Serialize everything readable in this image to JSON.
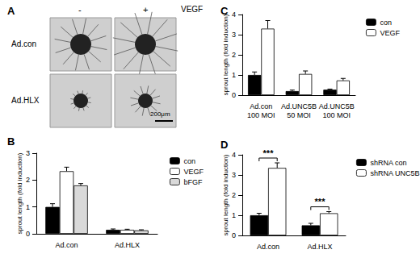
{
  "panel_a": {
    "label": "A",
    "columns": [
      "-",
      "+"
    ],
    "column_title": "VEGF",
    "rows": [
      "Ad.con",
      "Ad.HLX"
    ],
    "scale_bar": "200μm"
  },
  "chart_data": [
    {
      "type": "bar",
      "title": "B",
      "y_label": "sprout length (fold induction)",
      "categories": [
        "Ad.con",
        "Ad.HLX"
      ],
      "series": [
        {
          "name": "con",
          "color": "#000000",
          "values": [
            1.0,
            0.15
          ],
          "errors": [
            0.12,
            0.03
          ]
        },
        {
          "name": "VEGF",
          "color": "#ffffff",
          "values": [
            2.33,
            0.15
          ],
          "errors": [
            0.15,
            0.02
          ]
        },
        {
          "name": "bFGF",
          "color": "#d9d9d9",
          "values": [
            1.8,
            0.13
          ],
          "errors": [
            0.07,
            0.02
          ]
        }
      ],
      "ylim": [
        0,
        3
      ],
      "yticks": [
        0,
        1,
        2,
        3
      ],
      "grid": false,
      "legend": "upper right"
    },
    {
      "type": "bar",
      "title": "C",
      "y_label": "sprout length (fold induction)",
      "categories": [
        "Ad.con\n100 MOI",
        "Ad.UNC5B\n50 MOI",
        "Ad.UNC5B\n100 MOI"
      ],
      "series": [
        {
          "name": "con",
          "color": "#000000",
          "values": [
            1.0,
            0.2,
            0.27
          ],
          "errors": [
            0.15,
            0.05,
            0.03
          ]
        },
        {
          "name": "VEGF",
          "color": "#ffffff",
          "values": [
            3.3,
            1.05,
            0.73
          ],
          "errors": [
            0.4,
            0.15,
            0.1
          ]
        }
      ],
      "ylim": [
        0,
        4
      ],
      "yticks": [
        0,
        1,
        2,
        3,
        4
      ],
      "grid": false,
      "legend": "upper right"
    },
    {
      "type": "bar",
      "title": "D",
      "y_label": "sprout length (fold induction)",
      "categories": [
        "Ad.con",
        "Ad.HLX"
      ],
      "series": [
        {
          "name": "shRNA con",
          "color": "#000000",
          "values": [
            1.0,
            0.5
          ],
          "errors": [
            0.1,
            0.1
          ]
        },
        {
          "name": "shRNA UNC5B",
          "color": "#ffffff",
          "values": [
            3.35,
            1.1
          ],
          "errors": [
            0.25,
            0.08
          ]
        }
      ],
      "annotations": [
        {
          "text": "***",
          "category": "Ad.con"
        },
        {
          "text": "***",
          "category": "Ad.HLX"
        }
      ],
      "ylim": [
        0,
        4
      ],
      "yticks": [
        0,
        1,
        2,
        3,
        4
      ],
      "grid": false,
      "legend": "upper right"
    }
  ]
}
